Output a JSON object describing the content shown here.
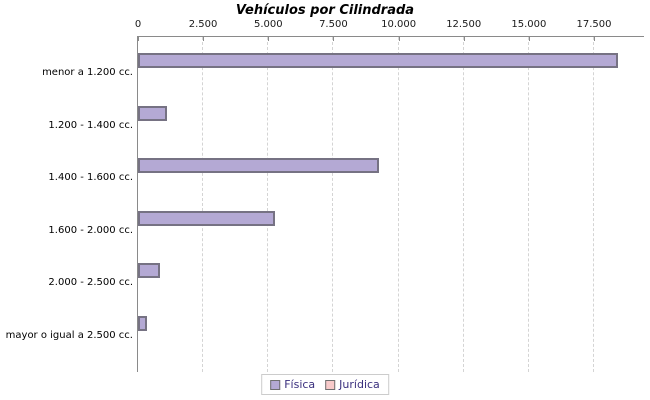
{
  "chart_data": {
    "type": "bar",
    "orientation": "horizontal",
    "title": "Vehículos por Cilindrada",
    "categories": [
      "menor a 1.200 cc.",
      "1.200 - 1.400 cc.",
      "1.400 - 1.600 cc.",
      "1.600 - 2.000 cc.",
      "2.000 - 2.500 cc.",
      "mayor o igual a 2.500 cc."
    ],
    "series": [
      {
        "name": "Física",
        "color": "#b4a9d4",
        "values": [
          18400,
          1100,
          9250,
          5250,
          850,
          350
        ]
      },
      {
        "name": "Jurídica",
        "color": "#f8caca",
        "values": [
          0,
          0,
          0,
          0,
          0,
          0
        ]
      }
    ],
    "x_ticks": [
      {
        "value": 0,
        "label": "0"
      },
      {
        "value": 2500,
        "label": "2.500"
      },
      {
        "value": 5000,
        "label": "5.000"
      },
      {
        "value": 7500,
        "label": "7.500"
      },
      {
        "value": 10000,
        "label": "10.000"
      },
      {
        "value": 12500,
        "label": "12.500"
      },
      {
        "value": 15000,
        "label": "15.000"
      },
      {
        "value": 17500,
        "label": "17.500"
      }
    ],
    "xlim": [
      0,
      19400
    ],
    "grid": "vertical-dashed",
    "legend_position": "bottom"
  },
  "colors": {
    "bar_fill": "#b4a9d4",
    "bar_border": "#767283",
    "juridica_fill": "#f8caca",
    "axis": "#8a8a8a",
    "gridline": "#d4d4d4",
    "legend_text": "#3a2f7e",
    "background": "#ffffff"
  }
}
